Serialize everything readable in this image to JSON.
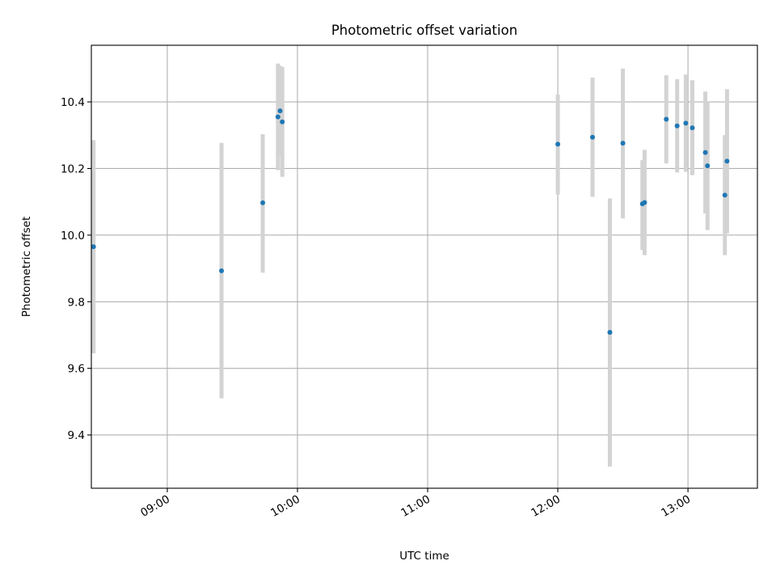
{
  "chart_data": {
    "type": "scatter",
    "title": "Photometric offset variation",
    "xlabel": "UTC time",
    "ylabel": "Photometric offset",
    "xlim": [
      "08:25",
      "13:32"
    ],
    "ylim": [
      9.24,
      10.57
    ],
    "x_ticks": [
      "09:00",
      "10:00",
      "11:00",
      "12:00",
      "13:00"
    ],
    "y_ticks": [
      9.4,
      9.6,
      9.8,
      10.0,
      10.2,
      10.4
    ],
    "y_tick_labels": [
      "9.4",
      "9.6",
      "9.8",
      "10.0",
      "10.2",
      "10.4"
    ],
    "grid": true,
    "colors": {
      "marker": "#1f77b4",
      "errorbar": "#d3d3d3"
    },
    "points": [
      {
        "x": "08:26",
        "y": 9.965,
        "ylow": 9.645,
        "yhigh": 10.285
      },
      {
        "x": "09:25",
        "y": 9.893,
        "ylow": 9.51,
        "yhigh": 10.277
      },
      {
        "x": "09:44",
        "y": 10.097,
        "ylow": 9.887,
        "yhigh": 10.303
      },
      {
        "x": "09:51",
        "y": 10.355,
        "ylow": 10.195,
        "yhigh": 10.515
      },
      {
        "x": "09:52",
        "y": 10.373,
        "ylow": 10.24,
        "yhigh": 10.508
      },
      {
        "x": "09:53",
        "y": 10.34,
        "ylow": 10.175,
        "yhigh": 10.505
      },
      {
        "x": "12:00",
        "y": 10.273,
        "ylow": 10.122,
        "yhigh": 10.422
      },
      {
        "x": "12:16",
        "y": 10.294,
        "ylow": 10.115,
        "yhigh": 10.473
      },
      {
        "x": "12:24",
        "y": 9.708,
        "ylow": 9.305,
        "yhigh": 10.11
      },
      {
        "x": "12:30",
        "y": 10.276,
        "ylow": 10.05,
        "yhigh": 10.5
      },
      {
        "x": "12:39",
        "y": 10.094,
        "ylow": 9.955,
        "yhigh": 10.225
      },
      {
        "x": "12:40",
        "y": 10.098,
        "ylow": 9.94,
        "yhigh": 10.256
      },
      {
        "x": "12:50",
        "y": 10.348,
        "ylow": 10.215,
        "yhigh": 10.48
      },
      {
        "x": "12:55",
        "y": 10.328,
        "ylow": 10.188,
        "yhigh": 10.468
      },
      {
        "x": "12:59",
        "y": 10.336,
        "ylow": 10.19,
        "yhigh": 10.482
      },
      {
        "x": "13:02",
        "y": 10.322,
        "ylow": 10.18,
        "yhigh": 10.465
      },
      {
        "x": "13:08",
        "y": 10.248,
        "ylow": 10.065,
        "yhigh": 10.431
      },
      {
        "x": "13:09",
        "y": 10.208,
        "ylow": 10.015,
        "yhigh": 10.4
      },
      {
        "x": "13:17",
        "y": 10.12,
        "ylow": 9.94,
        "yhigh": 10.3
      },
      {
        "x": "13:18",
        "y": 10.222,
        "ylow": 10.005,
        "yhigh": 10.438
      }
    ]
  }
}
